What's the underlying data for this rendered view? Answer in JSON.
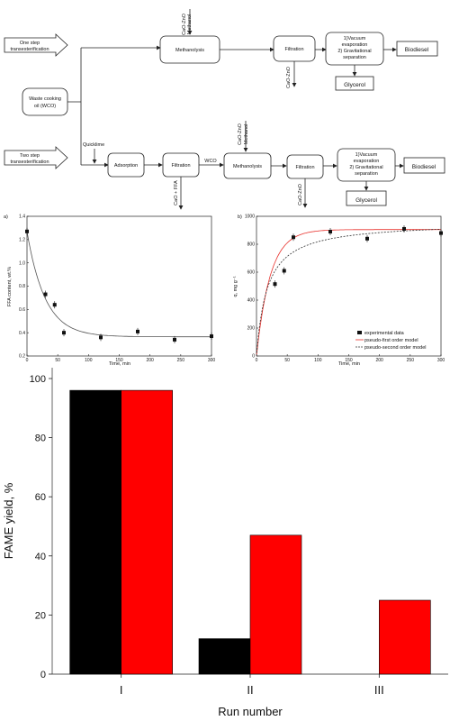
{
  "diagram": {
    "one_step": "One step",
    "one_step_2": "transesterification",
    "two_step": "Two step",
    "two_step_2": "transesterification",
    "wco_1": "Waste cooking",
    "wco_2": "oil (WCO)",
    "quicklime": "Quicklime",
    "methanolysis": "Methanolysis",
    "filtration": "Filtration",
    "adsorption": "Adsorption",
    "wco": "WCO",
    "cat": "CaO-ZnO",
    "methanol": "Methanol",
    "cao_ffa": "CaO + FFA",
    "sep_1": "1)Vacuum",
    "sep_2": "evaporation",
    "sep_3": "2) Gravitational",
    "sep_4": "separation",
    "biodiesel": "Biodiesel",
    "glycerol": "Glycerol"
  },
  "chart_data": [
    {
      "type": "scatter",
      "panel_label": "a)",
      "xlabel": "Time, min",
      "ylabel": "FFA content, wt.%",
      "xlim": [
        0,
        300
      ],
      "ylim": [
        0.2,
        1.4
      ],
      "xticks": [
        "0",
        "50",
        "100",
        "150",
        "200",
        "250",
        "300"
      ],
      "yticks": [
        "0.2",
        "0.4",
        "0.6",
        "0.8",
        "1.0",
        "1.2",
        "1.4"
      ],
      "x": [
        0,
        30,
        45,
        60,
        120,
        180,
        240,
        300
      ],
      "y": [
        1.27,
        0.73,
        0.64,
        0.4,
        0.36,
        0.41,
        0.34,
        0.37
      ],
      "fit_curve": {
        "asymptote": 0.365,
        "start": 1.27,
        "rate": 0.034
      }
    },
    {
      "type": "scatter",
      "panel_label": "b)",
      "xlabel": "Time, min",
      "ylabel": "q, mg g⁻¹",
      "xlim": [
        0,
        300
      ],
      "ylim": [
        0,
        1000
      ],
      "xticks": [
        "0",
        "50",
        "100",
        "150",
        "200",
        "250",
        "300"
      ],
      "yticks": [
        "0",
        "200",
        "400",
        "600",
        "800",
        "1000"
      ],
      "series": [
        {
          "name": "experimental data",
          "x": [
            30,
            45,
            60,
            120,
            180,
            240,
            300
          ],
          "y": [
            515,
            610,
            850,
            890,
            840,
            910,
            880
          ]
        },
        {
          "name": "pseudo-first order model",
          "qe": 905,
          "k1": 0.045,
          "color": "#e8302b"
        },
        {
          "name": "pseudo-second order model",
          "qe": 960,
          "k2": 6e-05,
          "color": "#333333"
        }
      ],
      "legend_position": "bottom-right"
    },
    {
      "type": "bar",
      "xlabel": "Run number",
      "ylabel": "FAME yield, %",
      "categories": [
        "I",
        "II",
        "III"
      ],
      "ylim": [
        0,
        100
      ],
      "yticks": [
        "0",
        "20",
        "40",
        "60",
        "80",
        "100"
      ],
      "series": [
        {
          "values": [
            96,
            12,
            0
          ],
          "color": "#000000"
        },
        {
          "values": [
            96,
            47,
            25
          ],
          "color": "#ff0000"
        }
      ]
    }
  ]
}
